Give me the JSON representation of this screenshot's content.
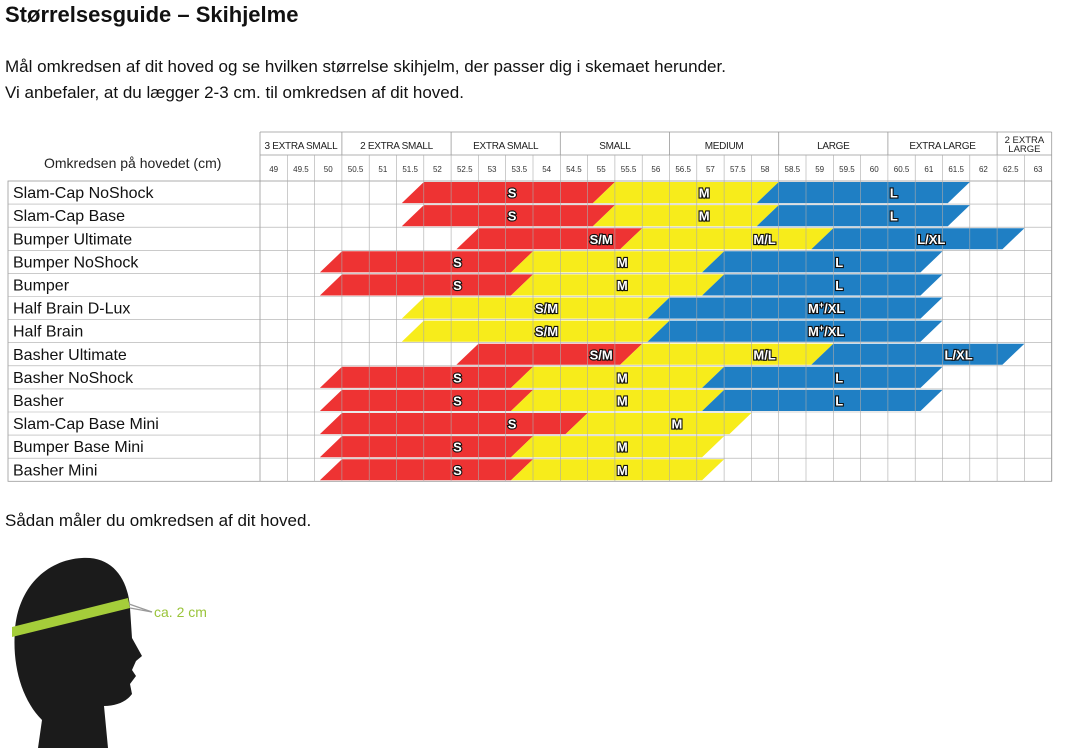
{
  "title": "Størrelsesguide – Skihjelme",
  "intro": [
    "Mål omkredsen af dit hoved og se hvilken størrelse skihjelm, der passer dig i skemaet herunder.",
    "Vi anbefaler, at du lægger 2-3 cm. til omkredsen af dit hoved."
  ],
  "chart_data": {
    "type": "table",
    "row_header": "Omkredsen på hovedet (cm)",
    "columns": [
      "49",
      "49.5",
      "50",
      "50.5",
      "51",
      "51.5",
      "52",
      "52.5",
      "53",
      "53.5",
      "54",
      "54.5",
      "55",
      "55.5",
      "56",
      "56.5",
      "57",
      "57.5",
      "58",
      "58.5",
      "59",
      "59.5",
      "60",
      "60.5",
      "61",
      "61.5",
      "62",
      "62.5",
      "63"
    ],
    "groups": [
      {
        "label": "3 EXTRA SMALL",
        "from": 0,
        "to": 3
      },
      {
        "label": "2 EXTRA SMALL",
        "from": 3,
        "to": 7
      },
      {
        "label": "EXTRA SMALL",
        "from": 7,
        "to": 11
      },
      {
        "label": "SMALL",
        "from": 11,
        "to": 15
      },
      {
        "label": "MEDIUM",
        "from": 15,
        "to": 19
      },
      {
        "label": "LARGE",
        "from": 19,
        "to": 23
      },
      {
        "label": "EXTRA LARGE",
        "from": 23,
        "to": 27
      },
      {
        "label": "2 EXTRA LARGE",
        "from": 27,
        "to": 29
      }
    ],
    "colors": {
      "red": "#ee3333",
      "yellow": "#f7ec1b",
      "blue": "#1f7fc4"
    },
    "rows": [
      {
        "name": "Slam-Cap NoShock",
        "bands": [
          {
            "label": "S",
            "start": 52,
            "end": 55.5,
            "color": "red",
            "label_at": 53.5
          },
          {
            "label": "M",
            "start": 55.5,
            "end": 58.5,
            "color": "yellow",
            "label_at": 57
          },
          {
            "label": "L",
            "start": 58.5,
            "end": 62,
            "color": "blue",
            "label_at": 60.5
          }
        ]
      },
      {
        "name": "Slam-Cap Base",
        "bands": [
          {
            "label": "S",
            "start": 52,
            "end": 55.5,
            "color": "red",
            "label_at": 53.5
          },
          {
            "label": "M",
            "start": 55.5,
            "end": 58.5,
            "color": "yellow",
            "label_at": 57
          },
          {
            "label": "L",
            "start": 58.5,
            "end": 62,
            "color": "blue",
            "label_at": 60.5
          }
        ]
      },
      {
        "name": "Bumper Ultimate",
        "bands": [
          {
            "label": "S/M",
            "start": 53,
            "end": 56,
            "color": "red",
            "label_at": 55
          },
          {
            "label": "M/L",
            "start": 56,
            "end": 59.5,
            "color": "yellow",
            "label_at": 58
          },
          {
            "label": "L/XL",
            "start": 59.5,
            "end": 63,
            "color": "blue",
            "label_at": 61
          }
        ]
      },
      {
        "name": "Bumper NoShock",
        "bands": [
          {
            "label": "S",
            "start": 50.5,
            "end": 54,
            "color": "red",
            "label_at": 52.5
          },
          {
            "label": "M",
            "start": 54,
            "end": 57.5,
            "color": "yellow",
            "label_at": 55.5
          },
          {
            "label": "L",
            "start": 57.5,
            "end": 61.5,
            "color": "blue",
            "label_at": 59.5
          }
        ]
      },
      {
        "name": "Bumper",
        "bands": [
          {
            "label": "S",
            "start": 50.5,
            "end": 54,
            "color": "red",
            "label_at": 52.5
          },
          {
            "label": "M",
            "start": 54,
            "end": 57.5,
            "color": "yellow",
            "label_at": 55.5
          },
          {
            "label": "L",
            "start": 57.5,
            "end": 61.5,
            "color": "blue",
            "label_at": 59.5
          }
        ]
      },
      {
        "name": "Half Brain D-Lux",
        "bands": [
          {
            "label": "S/M",
            "start": 52,
            "end": 56.5,
            "color": "yellow",
            "label_at": 54
          },
          {
            "label": "M/XL",
            "sup": "+",
            "start": 56.5,
            "end": 61.5,
            "color": "blue",
            "label_at": 59
          }
        ]
      },
      {
        "name": "Half Brain",
        "bands": [
          {
            "label": "S/M",
            "start": 52,
            "end": 56.5,
            "color": "yellow",
            "label_at": 54
          },
          {
            "label": "M/XL",
            "sup": "+",
            "start": 56.5,
            "end": 61.5,
            "color": "blue",
            "label_at": 59
          }
        ]
      },
      {
        "name": "Basher Ultimate",
        "bands": [
          {
            "label": "S/M",
            "start": 53,
            "end": 56,
            "color": "red",
            "label_at": 55
          },
          {
            "label": "M/L",
            "start": 56,
            "end": 59.5,
            "color": "yellow",
            "label_at": 58
          },
          {
            "label": "L/XL",
            "start": 59.5,
            "end": 63,
            "color": "blue",
            "label_at": 61.5
          }
        ]
      },
      {
        "name": "Basher NoShock",
        "bands": [
          {
            "label": "S",
            "start": 50.5,
            "end": 54,
            "color": "red",
            "label_at": 52.5
          },
          {
            "label": "M",
            "start": 54,
            "end": 57.5,
            "color": "yellow",
            "label_at": 55.5
          },
          {
            "label": "L",
            "start": 57.5,
            "end": 61.5,
            "color": "blue",
            "label_at": 59.5
          }
        ]
      },
      {
        "name": "Basher",
        "bands": [
          {
            "label": "S",
            "start": 50.5,
            "end": 54,
            "color": "red",
            "label_at": 52.5
          },
          {
            "label": "M",
            "start": 54,
            "end": 57.5,
            "color": "yellow",
            "label_at": 55.5
          },
          {
            "label": "L",
            "start": 57.5,
            "end": 61.5,
            "color": "blue",
            "label_at": 59.5
          }
        ]
      },
      {
        "name": "Slam-Cap Base Mini",
        "bands": [
          {
            "label": "S",
            "start": 50.5,
            "end": 55,
            "color": "red",
            "label_at": 53.5
          },
          {
            "label": "M",
            "start": 55,
            "end": 58,
            "color": "yellow",
            "label_at": 56.5
          }
        ]
      },
      {
        "name": "Bumper Base Mini",
        "bands": [
          {
            "label": "S",
            "start": 50.5,
            "end": 54,
            "color": "red",
            "label_at": 52.5
          },
          {
            "label": "M",
            "start": 54,
            "end": 57.5,
            "color": "yellow",
            "label_at": 55.5
          }
        ]
      },
      {
        "name": "Basher Mini",
        "bands": [
          {
            "label": "S",
            "start": 50.5,
            "end": 54,
            "color": "red",
            "label_at": 52.5
          },
          {
            "label": "M",
            "start": 54,
            "end": 57.5,
            "color": "yellow",
            "label_at": 55.5
          }
        ]
      }
    ]
  },
  "measure_text": "Sådan måler du omkredsen af dit hoved.",
  "figure": {
    "icon": "head-silhouette-icon",
    "band_label": "ca. 2 cm",
    "head_color": "#1b1b1b",
    "band_color": "#a5cd3a"
  }
}
